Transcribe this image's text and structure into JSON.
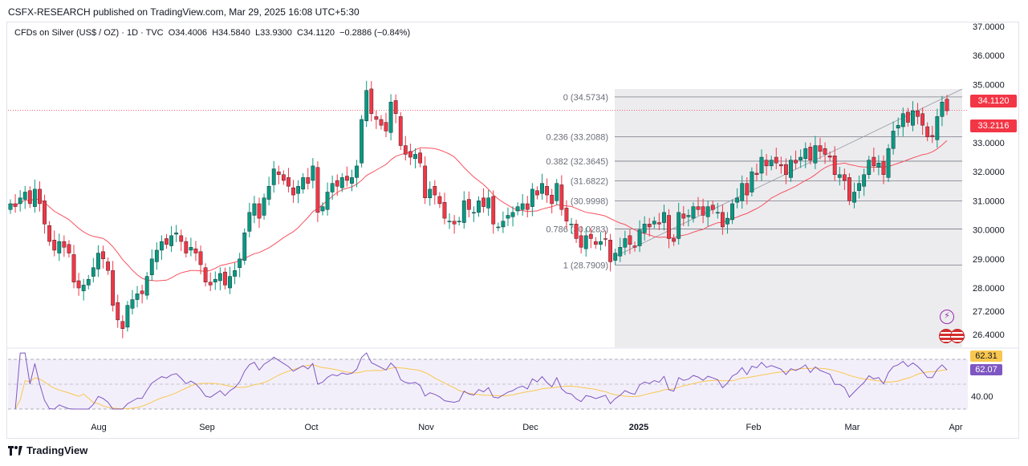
{
  "header": {
    "publisher_line": "CSFX-RESEARCH published on TradingView.com, Mar 29, 2025 16:08 UTC+5:30"
  },
  "legend": {
    "symbol": "CFDs on Silver (US$ / OZ) · 1D · TVC",
    "open": "O34.4006",
    "high": "H34.5840",
    "low": "L33.9300",
    "close": "C34.1120",
    "change": "−0.2886 (−0.84%)"
  },
  "tags": {
    "last_price": "34.1120",
    "ma_value": "33.2116",
    "rsi_ma": "62.31",
    "rsi": "62.07"
  },
  "footer": {
    "brand": "TradingView"
  },
  "colors": {
    "up": "#089981",
    "down": "#f23645",
    "ma": "#f7525f",
    "rsi": "#7e57c2",
    "rsi_ma": "#f9c74f",
    "fib_zone": "#e9e9ec"
  },
  "chart_data": {
    "type": "candlestick",
    "y_axis": {
      "min": 26.0,
      "max": 37.3,
      "ticks": [
        "37.0000",
        "36.0000",
        "35.0000",
        "33.0000",
        "32.0000",
        "31.0000",
        "30.0000",
        "29.0000",
        "28.0000",
        "27.2000",
        "26.4000"
      ]
    },
    "x_axis": {
      "labels": [
        "Aug",
        "Sep",
        "Oct",
        "Nov",
        "Dec",
        "2025",
        "Feb",
        "Mar",
        "Apr"
      ]
    },
    "fibonacci": {
      "levels": [
        {
          "label": "0 (34.5734)",
          "value": 34.5734
        },
        {
          "label": "0.236 (33.2088)",
          "value": 33.2088
        },
        {
          "label": "0.382 (32.3645)",
          "value": 32.3645
        },
        {
          "label": "(31.6822)",
          "value": 31.6822
        },
        {
          "label": "(30.9998)",
          "value": 30.9998
        },
        {
          "label": "0.786 (30.0283)",
          "value": 30.0283
        },
        {
          "label": "1 (28.7909)",
          "value": 28.7909
        }
      ]
    },
    "last_price_line": 34.112,
    "closes": [
      30.9,
      30.8,
      31.1,
      31.3,
      30.9,
      31.4,
      30.9,
      30.2,
      29.6,
      29.3,
      29.6,
      29.4,
      29.2,
      28.2,
      28.0,
      28.1,
      28.3,
      28.7,
      29.2,
      29.0,
      28.6,
      27.4,
      26.9,
      26.6,
      27.4,
      27.6,
      27.8,
      27.8,
      28.4,
      29.0,
      29.3,
      29.6,
      29.5,
      29.8,
      29.9,
      29.6,
      29.2,
      29.4,
      29.2,
      28.8,
      28.2,
      28.1,
      28.3,
      28.5,
      28.1,
      28.4,
      28.6,
      29.0,
      29.9,
      30.6,
      30.9,
      30.4,
      31.1,
      31.5,
      32.1,
      31.9,
      31.7,
      31.5,
      31.2,
      31.5,
      31.8,
      31.6,
      32.2,
      30.6,
      30.8,
      31.3,
      31.6,
      31.5,
      31.8,
      31.7,
      31.8,
      32.2,
      33.8,
      34.8,
      34.0,
      33.8,
      33.6,
      33.4,
      34.4,
      34.0,
      32.9,
      32.6,
      32.5,
      32.6,
      32.3,
      31.1,
      31.4,
      31.2,
      30.9,
      30.4,
      30.3,
      30.2,
      30.3,
      31.0,
      30.7,
      30.6,
      31.0,
      30.8,
      31.1,
      30.2,
      30.1,
      30.3,
      30.5,
      30.6,
      30.8,
      30.9,
      30.7,
      31.4,
      31.2,
      31.6,
      31.2,
      30.9,
      31.6,
      30.7,
      30.3,
      30.2,
      29.7,
      29.4,
      29.8,
      29.7,
      29.5,
      29.6,
      29.7,
      28.9,
      29.2,
      29.4,
      29.7,
      29.5,
      29.4,
      30.0,
      30.2,
      30.1,
      30.3,
      30.2,
      30.6,
      29.7,
      29.6,
      30.6,
      30.4,
      30.5,
      30.8,
      30.7,
      30.5,
      30.8,
      30.7,
      30.6,
      30.1,
      30.4,
      30.9,
      31.1,
      31.6,
      31.2,
      32.0,
      31.9,
      32.5,
      32.2,
      32.4,
      32.3,
      32.2,
      31.9,
      32.4,
      32.3,
      32.5,
      32.8,
      32.4,
      32.9,
      32.7,
      32.6,
      32.5,
      31.9,
      31.9,
      31.7,
      31.0,
      31.3,
      31.6,
      31.9,
      32.4,
      32.2,
      32.3,
      31.9,
      32.8,
      33.4,
      33.6,
      34.0,
      33.7,
      34.1,
      33.9,
      33.6,
      33.2,
      33.2,
      33.9,
      34.4,
      34.1
    ]
  },
  "rsi_panel": {
    "ticks": [
      "40.00"
    ]
  }
}
